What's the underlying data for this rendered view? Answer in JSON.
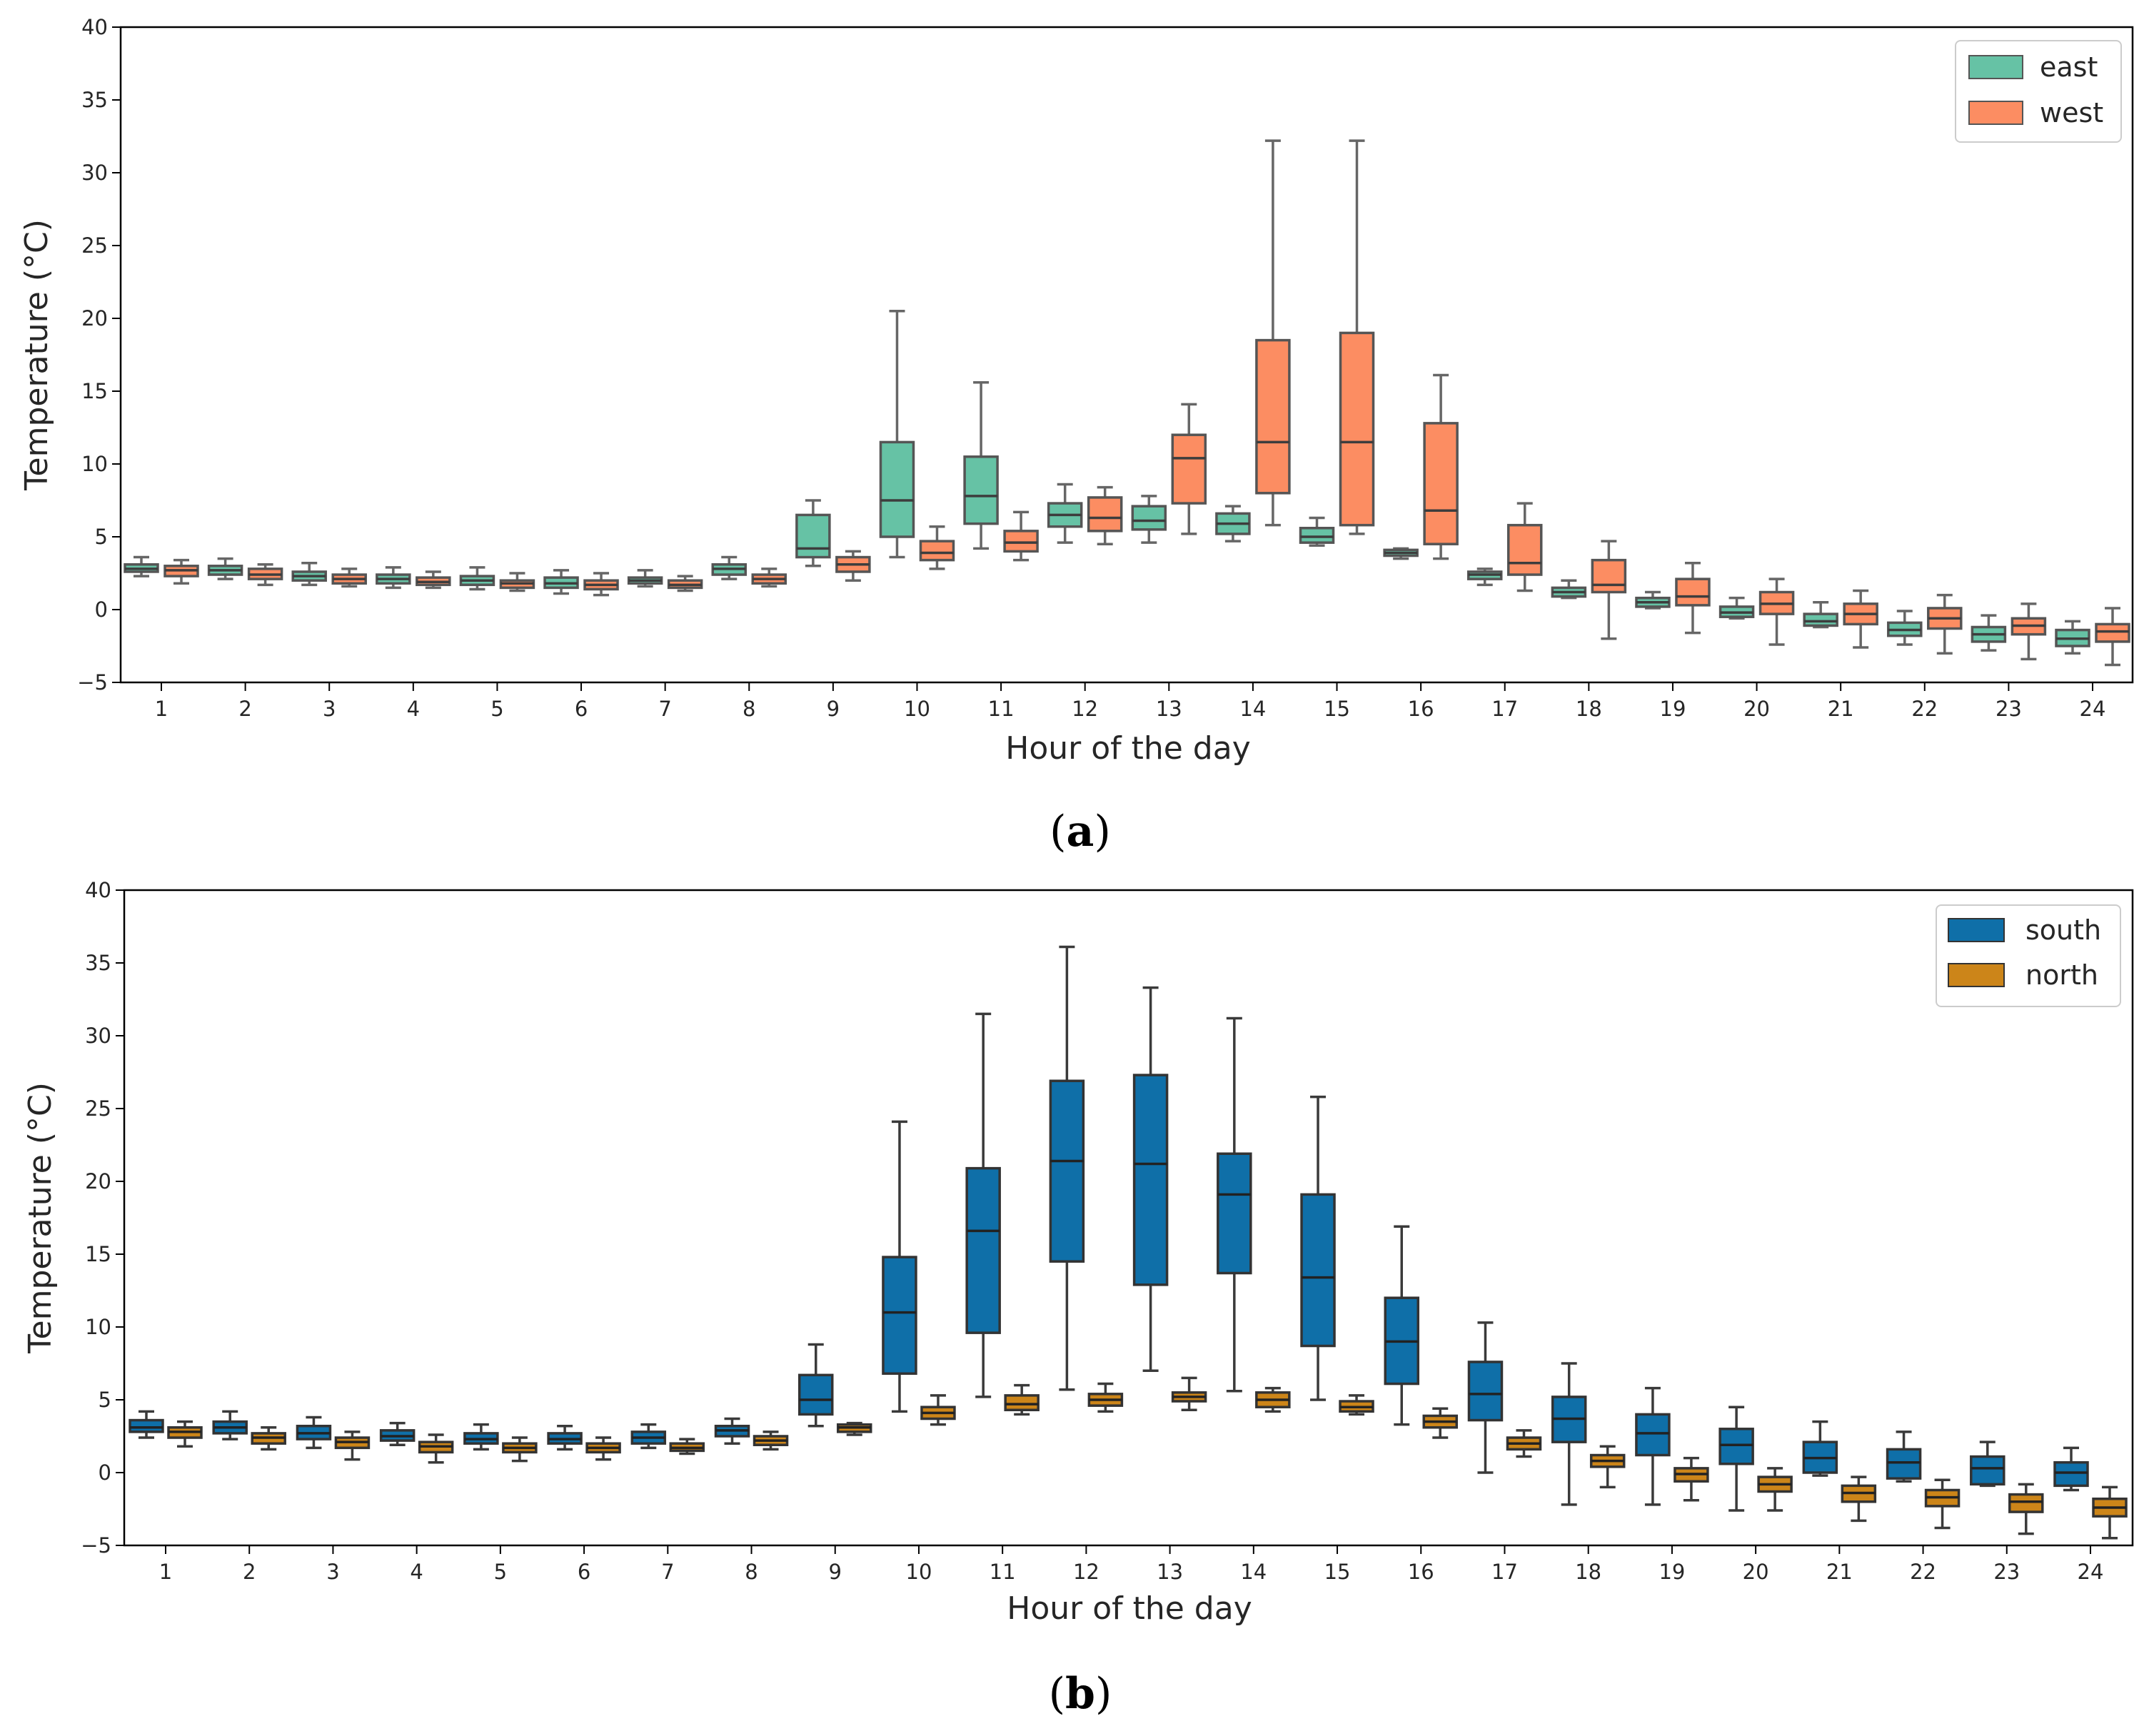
{
  "chart_data": [
    {
      "type": "boxplot",
      "panel_label": {
        "open": "(",
        "letter": "a",
        "close": ")"
      },
      "xlabel": "Hour of the day",
      "ylabel": "Temperature (°C)",
      "ylim": [
        -5,
        40
      ],
      "yticks": [
        -5,
        0,
        5,
        10,
        15,
        20,
        25,
        30,
        35,
        40
      ],
      "categories": [
        "1",
        "2",
        "3",
        "4",
        "5",
        "6",
        "7",
        "8",
        "9",
        "10",
        "11",
        "12",
        "13",
        "14",
        "15",
        "16",
        "17",
        "18",
        "19",
        "20",
        "21",
        "22",
        "23",
        "24"
      ],
      "legend_position": "top-right",
      "series": [
        {
          "name": "east",
          "color": "#66c2a5",
          "boxes": [
            {
              "lo": 2.3,
              "q1": 2.6,
              "med": 2.8,
              "q3": 3.1,
              "hi": 3.6
            },
            {
              "lo": 2.1,
              "q1": 2.4,
              "med": 2.7,
              "q3": 3.0,
              "hi": 3.5
            },
            {
              "lo": 1.7,
              "q1": 2.0,
              "med": 2.3,
              "q3": 2.6,
              "hi": 3.2
            },
            {
              "lo": 1.5,
              "q1": 1.8,
              "med": 2.1,
              "q3": 2.4,
              "hi": 2.9
            },
            {
              "lo": 1.4,
              "q1": 1.7,
              "med": 2.0,
              "q3": 2.3,
              "hi": 2.9
            },
            {
              "lo": 1.1,
              "q1": 1.5,
              "med": 1.8,
              "q3": 2.2,
              "hi": 2.7
            },
            {
              "lo": 1.6,
              "q1": 1.8,
              "med": 2.0,
              "q3": 2.2,
              "hi": 2.7
            },
            {
              "lo": 2.1,
              "q1": 2.4,
              "med": 2.8,
              "q3": 3.1,
              "hi": 3.6
            },
            {
              "lo": 3.0,
              "q1": 3.6,
              "med": 4.2,
              "q3": 6.5,
              "hi": 7.5
            },
            {
              "lo": 3.6,
              "q1": 5.0,
              "med": 7.5,
              "q3": 11.5,
              "hi": 20.5
            },
            {
              "lo": 4.2,
              "q1": 5.9,
              "med": 7.8,
              "q3": 10.5,
              "hi": 15.6
            },
            {
              "lo": 4.6,
              "q1": 5.7,
              "med": 6.5,
              "q3": 7.3,
              "hi": 8.6
            },
            {
              "lo": 4.6,
              "q1": 5.5,
              "med": 6.1,
              "q3": 7.1,
              "hi": 7.8
            },
            {
              "lo": 4.7,
              "q1": 5.2,
              "med": 5.9,
              "q3": 6.6,
              "hi": 7.1
            },
            {
              "lo": 4.4,
              "q1": 4.6,
              "med": 5.0,
              "q3": 5.6,
              "hi": 6.3
            },
            {
              "lo": 3.5,
              "q1": 3.7,
              "med": 3.9,
              "q3": 4.1,
              "hi": 4.2
            },
            {
              "lo": 1.7,
              "q1": 2.1,
              "med": 2.4,
              "q3": 2.6,
              "hi": 2.8
            },
            {
              "lo": 0.8,
              "q1": 0.9,
              "med": 1.2,
              "q3": 1.5,
              "hi": 2.0
            },
            {
              "lo": 0.1,
              "q1": 0.2,
              "med": 0.5,
              "q3": 0.8,
              "hi": 1.2
            },
            {
              "lo": -0.6,
              "q1": -0.5,
              "med": -0.2,
              "q3": 0.2,
              "hi": 0.8
            },
            {
              "lo": -1.2,
              "q1": -1.1,
              "med": -0.8,
              "q3": -0.3,
              "hi": 0.5
            },
            {
              "lo": -2.4,
              "q1": -1.8,
              "med": -1.4,
              "q3": -0.9,
              "hi": -0.1
            },
            {
              "lo": -2.8,
              "q1": -2.2,
              "med": -1.7,
              "q3": -1.2,
              "hi": -0.4
            },
            {
              "lo": -3.0,
              "q1": -2.5,
              "med": -2.0,
              "q3": -1.4,
              "hi": -0.8
            }
          ]
        },
        {
          "name": "west",
          "color": "#fc8d62",
          "boxes": [
            {
              "lo": 1.8,
              "q1": 2.3,
              "med": 2.7,
              "q3": 3.0,
              "hi": 3.4
            },
            {
              "lo": 1.7,
              "q1": 2.1,
              "med": 2.4,
              "q3": 2.8,
              "hi": 3.1
            },
            {
              "lo": 1.6,
              "q1": 1.8,
              "med": 2.1,
              "q3": 2.4,
              "hi": 2.8
            },
            {
              "lo": 1.5,
              "q1": 1.7,
              "med": 1.9,
              "q3": 2.2,
              "hi": 2.6
            },
            {
              "lo": 1.3,
              "q1": 1.5,
              "med": 1.8,
              "q3": 2.0,
              "hi": 2.5
            },
            {
              "lo": 1.0,
              "q1": 1.4,
              "med": 1.7,
              "q3": 2.0,
              "hi": 2.5
            },
            {
              "lo": 1.3,
              "q1": 1.5,
              "med": 1.7,
              "q3": 2.0,
              "hi": 2.3
            },
            {
              "lo": 1.6,
              "q1": 1.8,
              "med": 2.1,
              "q3": 2.4,
              "hi": 2.8
            },
            {
              "lo": 2.0,
              "q1": 2.6,
              "med": 3.1,
              "q3": 3.6,
              "hi": 4.0
            },
            {
              "lo": 2.8,
              "q1": 3.4,
              "med": 3.9,
              "q3": 4.7,
              "hi": 5.7
            },
            {
              "lo": 3.4,
              "q1": 4.0,
              "med": 4.6,
              "q3": 5.4,
              "hi": 6.7
            },
            {
              "lo": 4.5,
              "q1": 5.4,
              "med": 6.3,
              "q3": 7.7,
              "hi": 8.4
            },
            {
              "lo": 5.2,
              "q1": 7.3,
              "med": 10.4,
              "q3": 12.0,
              "hi": 14.1
            },
            {
              "lo": 5.8,
              "q1": 8.0,
              "med": 11.5,
              "q3": 18.5,
              "hi": 32.2
            },
            {
              "lo": 5.2,
              "q1": 5.8,
              "med": 11.5,
              "q3": 19.0,
              "hi": 32.2
            },
            {
              "lo": 3.5,
              "q1": 4.5,
              "med": 6.8,
              "q3": 12.8,
              "hi": 16.1
            },
            {
              "lo": 1.3,
              "q1": 2.4,
              "med": 3.2,
              "q3": 5.8,
              "hi": 7.3
            },
            {
              "lo": -2.0,
              "q1": 1.2,
              "med": 1.7,
              "q3": 3.4,
              "hi": 4.7
            },
            {
              "lo": -1.6,
              "q1": 0.3,
              "med": 0.9,
              "q3": 2.1,
              "hi": 3.2
            },
            {
              "lo": -2.4,
              "q1": -0.3,
              "med": 0.4,
              "q3": 1.2,
              "hi": 2.1
            },
            {
              "lo": -2.6,
              "q1": -1.0,
              "med": -0.3,
              "q3": 0.4,
              "hi": 1.3
            },
            {
              "lo": -3.0,
              "q1": -1.3,
              "med": -0.6,
              "q3": 0.1,
              "hi": 1.0
            },
            {
              "lo": -3.4,
              "q1": -1.7,
              "med": -1.1,
              "q3": -0.6,
              "hi": 0.4
            },
            {
              "lo": -3.8,
              "q1": -2.2,
              "med": -1.5,
              "q3": -1.0,
              "hi": 0.1
            }
          ]
        }
      ]
    },
    {
      "type": "boxplot",
      "panel_label": {
        "open": "(",
        "letter": "b",
        "close": ")"
      },
      "xlabel": "Hour of the day",
      "ylabel": "Temperature (°C)",
      "ylim": [
        -5,
        40
      ],
      "yticks": [
        -5,
        0,
        5,
        10,
        15,
        20,
        25,
        30,
        35,
        40
      ],
      "categories": [
        "1",
        "2",
        "3",
        "4",
        "5",
        "6",
        "7",
        "8",
        "9",
        "10",
        "11",
        "12",
        "13",
        "14",
        "15",
        "16",
        "17",
        "18",
        "19",
        "20",
        "21",
        "22",
        "23",
        "24"
      ],
      "legend_position": "top-right",
      "series": [
        {
          "name": "south",
          "color": "#0f6fa8",
          "boxes": [
            {
              "lo": 2.4,
              "q1": 2.8,
              "med": 3.1,
              "q3": 3.6,
              "hi": 4.2
            },
            {
              "lo": 2.3,
              "q1": 2.7,
              "med": 3.1,
              "q3": 3.5,
              "hi": 4.2
            },
            {
              "lo": 1.7,
              "q1": 2.3,
              "med": 2.7,
              "q3": 3.2,
              "hi": 3.8
            },
            {
              "lo": 1.9,
              "q1": 2.2,
              "med": 2.5,
              "q3": 2.9,
              "hi": 3.4
            },
            {
              "lo": 1.6,
              "q1": 2.0,
              "med": 2.3,
              "q3": 2.7,
              "hi": 3.3
            },
            {
              "lo": 1.6,
              "q1": 2.0,
              "med": 2.3,
              "q3": 2.7,
              "hi": 3.2
            },
            {
              "lo": 1.7,
              "q1": 2.0,
              "med": 2.4,
              "q3": 2.8,
              "hi": 3.3
            },
            {
              "lo": 2.0,
              "q1": 2.5,
              "med": 2.9,
              "q3": 3.2,
              "hi": 3.7
            },
            {
              "lo": 3.2,
              "q1": 4.0,
              "med": 5.0,
              "q3": 6.7,
              "hi": 8.8
            },
            {
              "lo": 4.2,
              "q1": 6.8,
              "med": 11.0,
              "q3": 14.8,
              "hi": 24.1
            },
            {
              "lo": 5.2,
              "q1": 9.6,
              "med": 16.6,
              "q3": 20.9,
              "hi": 31.5
            },
            {
              "lo": 5.7,
              "q1": 14.5,
              "med": 21.4,
              "q3": 26.9,
              "hi": 36.1
            },
            {
              "lo": 7.0,
              "q1": 12.9,
              "med": 21.2,
              "q3": 27.3,
              "hi": 33.3
            },
            {
              "lo": 5.6,
              "q1": 13.7,
              "med": 19.1,
              "q3": 21.9,
              "hi": 31.2
            },
            {
              "lo": 5.0,
              "q1": 8.7,
              "med": 13.4,
              "q3": 19.1,
              "hi": 25.8
            },
            {
              "lo": 3.3,
              "q1": 6.1,
              "med": 9.0,
              "q3": 12.0,
              "hi": 16.9
            },
            {
              "lo": 0.0,
              "q1": 3.6,
              "med": 5.4,
              "q3": 7.6,
              "hi": 10.3
            },
            {
              "lo": -2.2,
              "q1": 2.1,
              "med": 3.7,
              "q3": 5.2,
              "hi": 7.5
            },
            {
              "lo": -2.2,
              "q1": 1.2,
              "med": 2.7,
              "q3": 4.0,
              "hi": 5.8
            },
            {
              "lo": -2.6,
              "q1": 0.6,
              "med": 1.9,
              "q3": 3.0,
              "hi": 4.5
            },
            {
              "lo": -0.2,
              "q1": 0.0,
              "med": 1.0,
              "q3": 2.1,
              "hi": 3.5
            },
            {
              "lo": -0.6,
              "q1": -0.4,
              "med": 0.7,
              "q3": 1.6,
              "hi": 2.8
            },
            {
              "lo": -0.9,
              "q1": -0.8,
              "med": 0.3,
              "q3": 1.1,
              "hi": 2.1
            },
            {
              "lo": -1.2,
              "q1": -0.9,
              "med": 0.0,
              "q3": 0.7,
              "hi": 1.7
            }
          ]
        },
        {
          "name": "north",
          "color": "#cc8519",
          "boxes": [
            {
              "lo": 1.8,
              "q1": 2.4,
              "med": 2.8,
              "q3": 3.1,
              "hi": 3.5
            },
            {
              "lo": 1.6,
              "q1": 2.0,
              "med": 2.4,
              "q3": 2.7,
              "hi": 3.1
            },
            {
              "lo": 0.9,
              "q1": 1.7,
              "med": 2.1,
              "q3": 2.4,
              "hi": 2.8
            },
            {
              "lo": 0.7,
              "q1": 1.4,
              "med": 1.8,
              "q3": 2.1,
              "hi": 2.6
            },
            {
              "lo": 0.8,
              "q1": 1.4,
              "med": 1.7,
              "q3": 2.0,
              "hi": 2.4
            },
            {
              "lo": 0.9,
              "q1": 1.4,
              "med": 1.7,
              "q3": 2.0,
              "hi": 2.4
            },
            {
              "lo": 1.3,
              "q1": 1.5,
              "med": 1.7,
              "q3": 2.0,
              "hi": 2.3
            },
            {
              "lo": 1.6,
              "q1": 1.9,
              "med": 2.2,
              "q3": 2.5,
              "hi": 2.8
            },
            {
              "lo": 2.6,
              "q1": 2.8,
              "med": 3.1,
              "q3": 3.3,
              "hi": 3.4
            },
            {
              "lo": 3.3,
              "q1": 3.7,
              "med": 4.1,
              "q3": 4.5,
              "hi": 5.3
            },
            {
              "lo": 4.0,
              "q1": 4.3,
              "med": 4.7,
              "q3": 5.3,
              "hi": 6.0
            },
            {
              "lo": 4.2,
              "q1": 4.6,
              "med": 5.0,
              "q3": 5.4,
              "hi": 6.1
            },
            {
              "lo": 4.3,
              "q1": 4.9,
              "med": 5.2,
              "q3": 5.5,
              "hi": 6.5
            },
            {
              "lo": 4.2,
              "q1": 4.5,
              "med": 5.0,
              "q3": 5.5,
              "hi": 5.8
            },
            {
              "lo": 4.0,
              "q1": 4.2,
              "med": 4.5,
              "q3": 4.9,
              "hi": 5.3
            },
            {
              "lo": 2.4,
              "q1": 3.1,
              "med": 3.5,
              "q3": 3.9,
              "hi": 4.4
            },
            {
              "lo": 1.1,
              "q1": 1.6,
              "med": 2.0,
              "q3": 2.4,
              "hi": 2.9
            },
            {
              "lo": -1.0,
              "q1": 0.4,
              "med": 0.8,
              "q3": 1.2,
              "hi": 1.8
            },
            {
              "lo": -1.9,
              "q1": -0.6,
              "med": -0.1,
              "q3": 0.3,
              "hi": 1.0
            },
            {
              "lo": -2.6,
              "q1": -1.3,
              "med": -0.8,
              "q3": -0.3,
              "hi": 0.3
            },
            {
              "lo": -3.3,
              "q1": -2.0,
              "med": -1.4,
              "q3": -0.9,
              "hi": -0.3
            },
            {
              "lo": -3.8,
              "q1": -2.3,
              "med": -1.7,
              "q3": -1.2,
              "hi": -0.5
            },
            {
              "lo": -4.2,
              "q1": -2.7,
              "med": -2.0,
              "q3": -1.5,
              "hi": -0.8
            },
            {
              "lo": -4.5,
              "q1": -3.0,
              "med": -2.4,
              "q3": -1.8,
              "hi": -1.0
            }
          ]
        }
      ]
    }
  ]
}
